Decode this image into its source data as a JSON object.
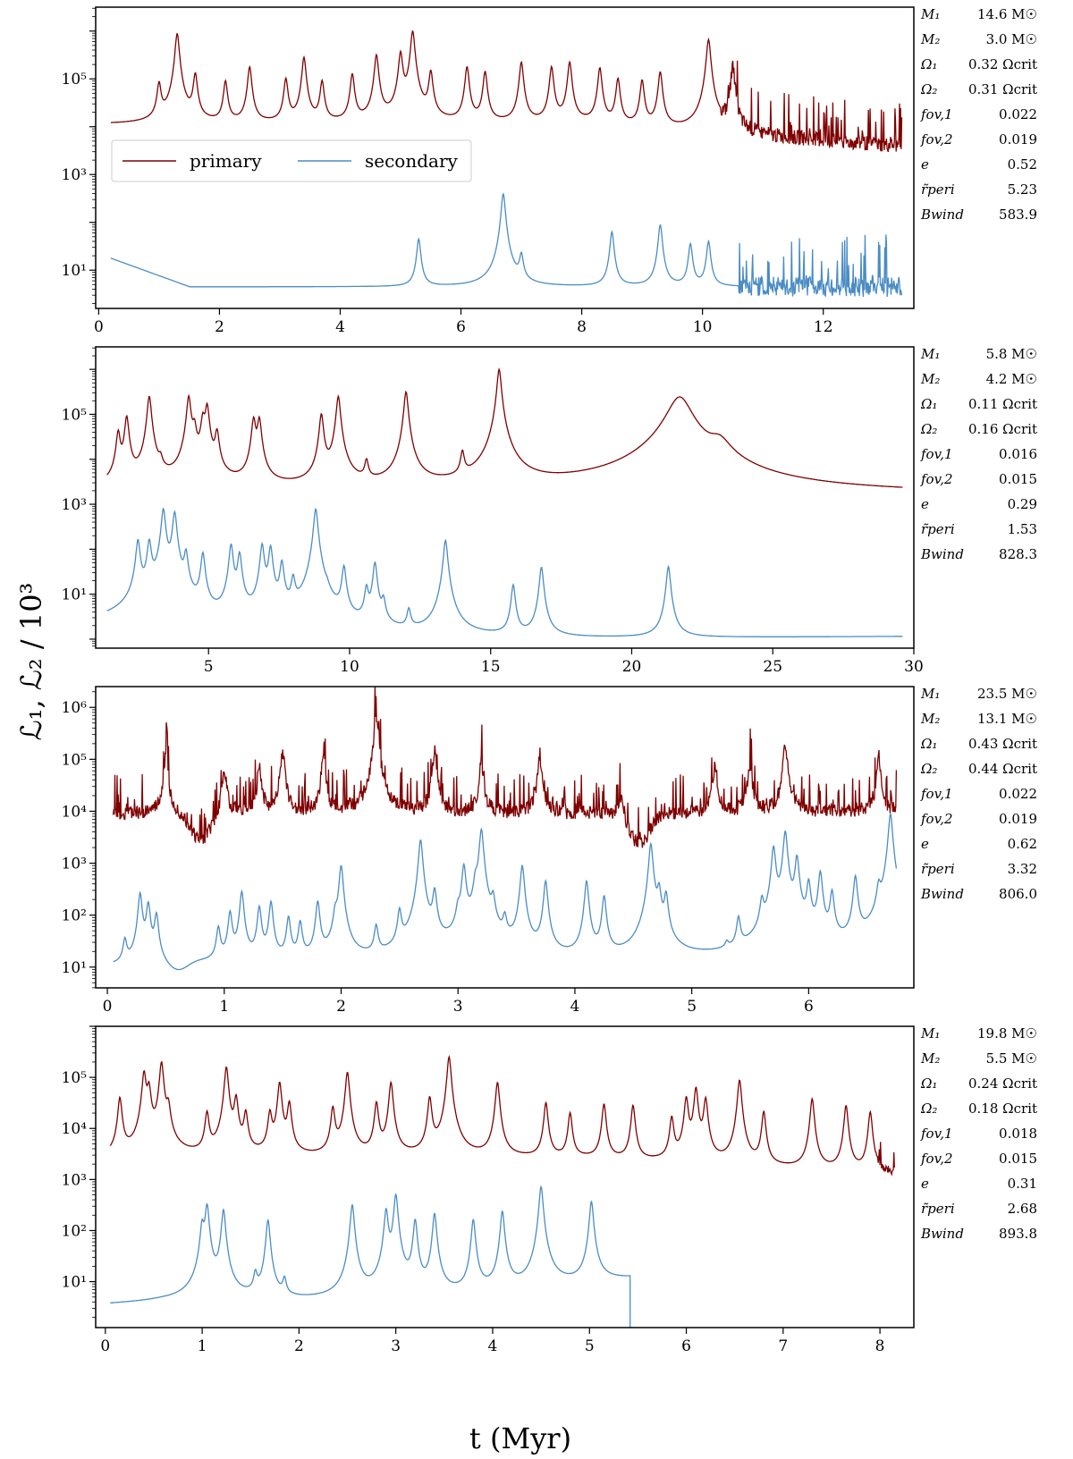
{
  "colors": {
    "primary": "#7f0000",
    "secondary": "#4a8cc4"
  },
  "legend": {
    "primary": "primary",
    "secondary": "secondary"
  },
  "axis": {
    "ylabel": "ℒ₁, ℒ₂ / 10³",
    "xlabel": "t (Myr)"
  },
  "chart_data": [
    {
      "type": "line",
      "xlim": [
        -0.05,
        13.5
      ],
      "ylim_log10": [
        0.2,
        6.5
      ],
      "xticks": [
        0,
        2,
        4,
        6,
        8,
        10,
        12
      ],
      "yticks": [
        {
          "exp": 1,
          "label": "10¹"
        },
        {
          "exp": 3,
          "label": "10³"
        },
        {
          "exp": 5,
          "label": "10⁵"
        }
      ],
      "series": [
        {
          "name": "primary",
          "xrange": [
            0.2,
            13.3
          ],
          "base_exp": 4.05,
          "end_exp": 3.6,
          "peaks": [
            [
              1.0,
              0.85
            ],
            [
              1.3,
              1.9
            ],
            [
              1.6,
              1.05
            ],
            [
              2.1,
              0.9
            ],
            [
              2.5,
              1.2
            ],
            [
              3.1,
              0.95
            ],
            [
              3.4,
              1.4
            ],
            [
              3.7,
              0.9
            ],
            [
              4.2,
              1.05
            ],
            [
              4.6,
              1.45
            ],
            [
              5.0,
              1.5
            ],
            [
              5.2,
              1.95
            ],
            [
              5.5,
              1.1
            ],
            [
              6.1,
              1.2
            ],
            [
              6.4,
              1.1
            ],
            [
              7.0,
              1.3
            ],
            [
              7.5,
              1.2
            ],
            [
              7.8,
              1.3
            ],
            [
              8.3,
              1.2
            ],
            [
              8.6,
              1.0
            ],
            [
              9.0,
              1.0
            ],
            [
              9.3,
              1.2
            ],
            [
              10.1,
              1.95
            ],
            [
              10.5,
              1.4
            ]
          ],
          "noisy_from": 10.3,
          "noise_amp": 0.9
        },
        {
          "name": "secondary",
          "xrange": [
            0.2,
            13.3
          ],
          "start_exp": 1.25,
          "base_exp": 0.65,
          "peaks": [
            [
              5.3,
              1.0
            ],
            [
              6.7,
              1.95
            ],
            [
              7.0,
              0.65
            ],
            [
              8.5,
              1.15
            ],
            [
              9.3,
              1.3
            ],
            [
              9.8,
              0.9
            ],
            [
              10.1,
              0.95
            ]
          ],
          "noisy_from": 10.6,
          "noise_amp": 1.2
        }
      ],
      "params": [
        {
          "name": "M₁",
          "value": "14.6 M☉"
        },
        {
          "name": "M₂",
          "value": "3.0 M☉"
        },
        {
          "name": "Ω₁",
          "value": "0.32 Ωcrit"
        },
        {
          "name": "Ω₂",
          "value": "0.31 Ωcrit"
        },
        {
          "name": "fov,1",
          "value": "0.022"
        },
        {
          "name": "fov,2",
          "value": "0.019"
        },
        {
          "name": "e",
          "value": "0.52"
        },
        {
          "name": "r̃peri",
          "value": "5.23"
        },
        {
          "name": "Bwind",
          "value": "583.9"
        }
      ]
    },
    {
      "type": "line",
      "xlim": [
        1.0,
        30.0
      ],
      "ylim_log10": [
        -0.2,
        6.5
      ],
      "xticks": [
        5,
        10,
        15,
        20,
        25,
        30
      ],
      "yticks": [
        {
          "exp": 1,
          "label": "10¹"
        },
        {
          "exp": 3,
          "label": "10³"
        },
        {
          "exp": 5,
          "label": "10⁵"
        }
      ],
      "series": [
        {
          "name": "primary",
          "xrange": [
            1.4,
            29.6
          ],
          "base_exp": 3.3,
          "end_exp": 3.25,
          "peaks": [
            [
              1.8,
              1.3
            ],
            [
              2.1,
              1.65
            ],
            [
              2.9,
              2.1
            ],
            [
              3.3,
              0.5
            ],
            [
              4.3,
              2.1
            ],
            [
              4.5,
              1.4
            ],
            [
              4.8,
              1.6
            ],
            [
              4.95,
              1.9
            ],
            [
              5.3,
              1.3
            ],
            [
              6.6,
              1.6
            ],
            [
              6.8,
              1.6
            ],
            [
              9.0,
              1.7
            ],
            [
              9.6,
              2.1
            ],
            [
              10.6,
              0.6
            ],
            [
              12.0,
              2.2
            ],
            [
              14.0,
              0.8
            ],
            [
              15.3,
              2.7
            ],
            [
              21.7,
              2.1
            ],
            [
              23.1,
              1.0
            ]
          ],
          "broad": [
            21.7,
            23.1
          ]
        },
        {
          "name": "secondary",
          "xrange": [
            1.4,
            29.6
          ],
          "start_exp": 0.15,
          "base_exp": 0.0,
          "end_exp": 0.05,
          "peaks": [
            [
              2.5,
              2.1
            ],
            [
              2.9,
              2.1
            ],
            [
              3.4,
              2.85
            ],
            [
              3.8,
              2.8
            ],
            [
              4.2,
              1.9
            ],
            [
              4.8,
              1.9
            ],
            [
              5.8,
              2.1
            ],
            [
              6.1,
              1.9
            ],
            [
              6.9,
              2.1
            ],
            [
              7.2,
              2.05
            ],
            [
              7.6,
              1.7
            ],
            [
              8.0,
              1.3
            ],
            [
              8.8,
              2.9
            ],
            [
              9.2,
              0.6
            ],
            [
              9.8,
              1.6
            ],
            [
              10.6,
              1.1
            ],
            [
              10.9,
              1.7
            ],
            [
              11.2,
              0.8
            ],
            [
              12.1,
              0.6
            ],
            [
              13.4,
              2.2
            ],
            [
              15.8,
              1.2
            ],
            [
              16.8,
              1.6
            ],
            [
              21.3,
              1.6
            ]
          ]
        }
      ],
      "params": [
        {
          "name": "M₁",
          "value": "5.8 M☉"
        },
        {
          "name": "M₂",
          "value": "4.2 M☉"
        },
        {
          "name": "Ω₁",
          "value": "0.11 Ωcrit"
        },
        {
          "name": "Ω₂",
          "value": "0.16 Ωcrit"
        },
        {
          "name": "fov,1",
          "value": "0.016"
        },
        {
          "name": "fov,2",
          "value": "0.015"
        },
        {
          "name": "e",
          "value": "0.29"
        },
        {
          "name": "r̃peri",
          "value": "1.53"
        },
        {
          "name": "Bwind",
          "value": "828.3"
        }
      ]
    },
    {
      "type": "line",
      "xlim": [
        -0.1,
        6.9
      ],
      "ylim_log10": [
        0.6,
        6.4
      ],
      "xticks": [
        0,
        1,
        2,
        3,
        4,
        5,
        6
      ],
      "yticks": [
        {
          "exp": 1,
          "label": "10¹"
        },
        {
          "exp": 2,
          "label": "10²"
        },
        {
          "exp": 3,
          "label": "10³"
        },
        {
          "exp": 4,
          "label": "10⁴"
        },
        {
          "exp": 5,
          "label": "10⁵"
        },
        {
          "exp": 6,
          "label": "10⁶"
        }
      ],
      "series": [
        {
          "name": "primary",
          "xrange": [
            0.05,
            6.75
          ],
          "base_exp": 3.95,
          "end_exp": 4.0,
          "peaks": [
            [
              0.5,
              1.1
            ],
            [
              1.0,
              0.9
            ],
            [
              1.3,
              0.9
            ],
            [
              1.5,
              1.2
            ],
            [
              1.85,
              1.1
            ],
            [
              2.3,
              1.9
            ],
            [
              2.8,
              1.2
            ],
            [
              3.2,
              1.0
            ],
            [
              3.7,
              1.1
            ],
            [
              4.4,
              0.5
            ],
            [
              5.2,
              0.9
            ],
            [
              5.5,
              0.9
            ],
            [
              5.8,
              1.3
            ],
            [
              6.6,
              1.0
            ]
          ],
          "dips": [
            [
              0.8,
              0.55
            ],
            [
              4.55,
              0.6
            ]
          ],
          "noisy_from": 0.0,
          "noise_amp": 0.75
        },
        {
          "name": "secondary",
          "xrange": [
            0.05,
            6.75
          ],
          "start_exp": 1.0,
          "base_exp": 1.05,
          "end_exp": 1.15,
          "peaks": [
            [
              0.15,
              0.5
            ],
            [
              0.28,
              1.4
            ],
            [
              0.35,
              1.2
            ],
            [
              0.42,
              1.0
            ],
            [
              0.95,
              0.7
            ],
            [
              1.05,
              1.0
            ],
            [
              1.15,
              1.4
            ],
            [
              1.3,
              1.1
            ],
            [
              1.4,
              1.2
            ],
            [
              1.55,
              0.9
            ],
            [
              1.65,
              0.8
            ],
            [
              1.8,
              1.2
            ],
            [
              1.95,
              0.9
            ],
            [
              2.0,
              1.9
            ],
            [
              2.3,
              0.7
            ],
            [
              2.5,
              1.0
            ],
            [
              2.68,
              2.4
            ],
            [
              2.8,
              1.4
            ],
            [
              3.0,
              0.9
            ],
            [
              3.05,
              1.9
            ],
            [
              3.15,
              1.5
            ],
            [
              3.2,
              2.6
            ],
            [
              3.3,
              1.2
            ],
            [
              3.4,
              0.8
            ],
            [
              3.55,
              1.9
            ],
            [
              3.75,
              1.6
            ],
            [
              4.1,
              1.6
            ],
            [
              4.25,
              1.3
            ],
            [
              4.65,
              2.3
            ],
            [
              4.72,
              1.4
            ],
            [
              4.78,
              1.3
            ],
            [
              5.3,
              0.2
            ],
            [
              5.4,
              0.8
            ],
            [
              5.6,
              1.1
            ],
            [
              5.7,
              2.2
            ],
            [
              5.8,
              2.5
            ],
            [
              5.9,
              2.0
            ],
            [
              6.0,
              1.5
            ],
            [
              6.1,
              1.7
            ],
            [
              6.2,
              1.3
            ],
            [
              6.4,
              1.6
            ],
            [
              6.6,
              1.3
            ],
            [
              6.7,
              2.8
            ]
          ],
          "dips": [
            [
              0.6,
              0.2
            ]
          ]
        }
      ],
      "params": [
        {
          "name": "M₁",
          "value": "23.5 M☉"
        },
        {
          "name": "M₂",
          "value": "13.1 M☉"
        },
        {
          "name": "Ω₁",
          "value": "0.43 Ωcrit"
        },
        {
          "name": "Ω₂",
          "value": "0.44 Ωcrit"
        },
        {
          "name": "fov,1",
          "value": "0.022"
        },
        {
          "name": "fov,2",
          "value": "0.019"
        },
        {
          "name": "e",
          "value": "0.62"
        },
        {
          "name": "r̃peri",
          "value": "3.32"
        },
        {
          "name": "Bwind",
          "value": "806.0"
        }
      ]
    },
    {
      "type": "line",
      "xlim": [
        -0.1,
        8.35
      ],
      "ylim_log10": [
        0.1,
        6.0
      ],
      "xticks": [
        0,
        1,
        2,
        3,
        4,
        5,
        6,
        7,
        8
      ],
      "yticks": [
        {
          "exp": 1,
          "label": "10¹"
        },
        {
          "exp": 2,
          "label": "10²"
        },
        {
          "exp": 3,
          "label": "10³"
        },
        {
          "exp": 4,
          "label": "10⁴"
        },
        {
          "exp": 5,
          "label": "10⁵"
        }
      ],
      "series": [
        {
          "name": "primary",
          "xrange": [
            0.05,
            8.15
          ],
          "base_exp": 3.4,
          "end_exp": 3.1,
          "peaks": [
            [
              0.15,
              1.2
            ],
            [
              0.4,
              1.7
            ],
            [
              0.45,
              1.4
            ],
            [
              0.58,
              1.9
            ],
            [
              0.65,
              1.0
            ],
            [
              1.05,
              0.9
            ],
            [
              1.25,
              1.8
            ],
            [
              1.35,
              1.2
            ],
            [
              1.45,
              0.9
            ],
            [
              1.7,
              0.9
            ],
            [
              1.8,
              1.5
            ],
            [
              1.9,
              1.1
            ],
            [
              2.35,
              1.0
            ],
            [
              2.5,
              1.7
            ],
            [
              2.8,
              1.1
            ],
            [
              2.95,
              1.5
            ],
            [
              3.35,
              1.2
            ],
            [
              3.55,
              2.0
            ],
            [
              4.05,
              1.5
            ],
            [
              4.55,
              1.1
            ],
            [
              4.8,
              0.9
            ],
            [
              5.15,
              1.1
            ],
            [
              5.45,
              1.1
            ],
            [
              5.85,
              0.9
            ],
            [
              6.0,
              1.3
            ],
            [
              6.1,
              1.5
            ],
            [
              6.2,
              1.3
            ],
            [
              6.55,
              1.7
            ],
            [
              6.8,
              1.1
            ],
            [
              7.3,
              1.4
            ],
            [
              7.65,
              1.3
            ],
            [
              7.9,
              1.2
            ]
          ],
          "noisy_from": 7.95,
          "noise_amp": 0.5
        },
        {
          "name": "secondary",
          "xrange": [
            0.05,
            5.42
          ],
          "start_exp": 0.55,
          "base_exp": 0.6,
          "end_exp": 1.05,
          "peaks": [
            [
              1.0,
              1.5
            ],
            [
              1.05,
              1.9
            ],
            [
              1.22,
              1.8
            ],
            [
              1.55,
              0.5
            ],
            [
              1.68,
              1.6
            ],
            [
              1.85,
              0.4
            ],
            [
              2.55,
              1.9
            ],
            [
              2.9,
              1.8
            ],
            [
              3.0,
              2.1
            ],
            [
              3.2,
              1.6
            ],
            [
              3.4,
              1.7
            ],
            [
              3.8,
              1.5
            ],
            [
              4.1,
              1.6
            ],
            [
              4.5,
              2.0
            ],
            [
              5.02,
              1.6
            ]
          ],
          "drop_at": 5.42
        }
      ],
      "params": [
        {
          "name": "M₁",
          "value": "19.8 M☉"
        },
        {
          "name": "M₂",
          "value": "5.5 M☉"
        },
        {
          "name": "Ω₁",
          "value": "0.24 Ωcrit"
        },
        {
          "name": "Ω₂",
          "value": "0.18 Ωcrit"
        },
        {
          "name": "fov,1",
          "value": "0.018"
        },
        {
          "name": "fov,2",
          "value": "0.015"
        },
        {
          "name": "e",
          "value": "0.31"
        },
        {
          "name": "r̃peri",
          "value": "2.68"
        },
        {
          "name": "Bwind",
          "value": "893.8"
        }
      ]
    }
  ]
}
